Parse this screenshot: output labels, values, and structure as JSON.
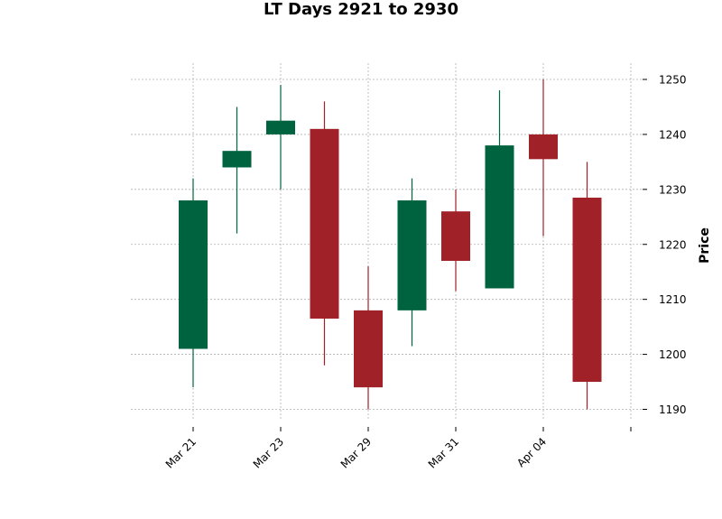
{
  "chart_data": {
    "type": "candlestick",
    "title": "LT Days 2921 to 2930",
    "ylabel": "Price",
    "ylim": [
      1187.5,
      1252.5
    ],
    "y_ticks": [
      1190,
      1200,
      1210,
      1220,
      1230,
      1240,
      1250
    ],
    "x_tick_labels": [
      "Mar 21",
      "Mar 23",
      "Mar 29",
      "Mar 31",
      "Apr 04",
      ""
    ],
    "x_tick_index": [
      0,
      2,
      4,
      6,
      8,
      10
    ],
    "grid": true,
    "colors": {
      "up": "#006340",
      "down": "#A02128",
      "grid": "#b0b0b0"
    },
    "candles": [
      {
        "open": 1201,
        "high": 1232,
        "low": 1194,
        "close": 1228
      },
      {
        "open": 1234,
        "high": 1245,
        "low": 1222,
        "close": 1237
      },
      {
        "open": 1240,
        "high": 1249,
        "low": 1230,
        "close": 1242.5
      },
      {
        "open": 1241,
        "high": 1246,
        "low": 1198,
        "close": 1206.5
      },
      {
        "open": 1208,
        "high": 1216,
        "low": 1190,
        "close": 1194
      },
      {
        "open": 1208,
        "high": 1232,
        "low": 1201.5,
        "close": 1228
      },
      {
        "open": 1226,
        "high": 1230,
        "low": 1211.5,
        "close": 1217
      },
      {
        "open": 1212,
        "high": 1248,
        "low": 1212,
        "close": 1238
      },
      {
        "open": 1240,
        "high": 1250,
        "low": 1221.5,
        "close": 1235.5
      },
      {
        "open": 1228.5,
        "high": 1235,
        "low": 1190,
        "close": 1195
      }
    ]
  }
}
